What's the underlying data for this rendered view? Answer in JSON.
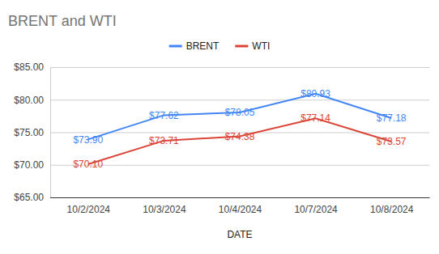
{
  "chart_data": {
    "type": "line",
    "title": "BRENT and WTI",
    "x_label": "DATE",
    "categories": [
      "10/2/2024",
      "10/3/2024",
      "10/4/2024",
      "10/7/2024",
      "10/8/2024"
    ],
    "series": [
      {
        "name": "BRENT",
        "color": "#4285f4",
        "values": [
          73.9,
          77.62,
          78.05,
          80.93,
          77.18
        ],
        "value_labels": [
          "$73.90",
          "$77.62",
          "$78.05",
          "$80.93",
          "$77.18"
        ]
      },
      {
        "name": "WTI",
        "color": "#db4437",
        "values": [
          70.1,
          73.71,
          74.38,
          77.14,
          73.57
        ],
        "value_labels": [
          "$70.10",
          "$73.71",
          "$74.38",
          "$77.14",
          "$73.57"
        ]
      }
    ],
    "ylim": [
      65,
      85
    ],
    "yticks": [
      {
        "value": 65,
        "label": "$65.00"
      },
      {
        "value": 70,
        "label": "$70.00"
      },
      {
        "value": 75,
        "label": "$75.00"
      },
      {
        "value": 80,
        "label": "$80.00"
      },
      {
        "value": 85,
        "label": "$85.00"
      }
    ],
    "grid": true,
    "legend": "top",
    "data_labels": true
  }
}
